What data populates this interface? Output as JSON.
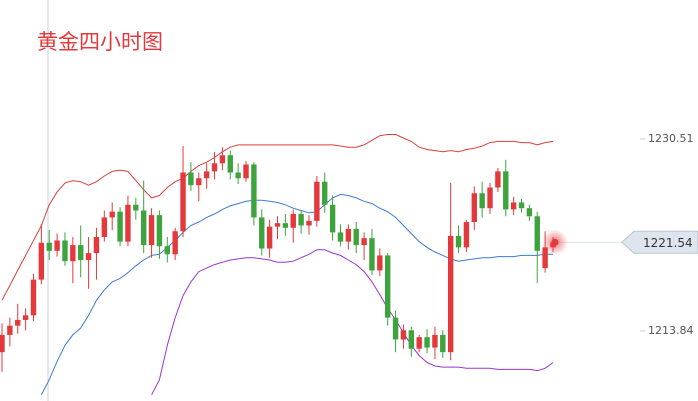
{
  "chart_data": {
    "type": "candlestick",
    "title": "黄金四小时图",
    "up_color": "#e4393c",
    "down_color": "#3da33d",
    "ylim": [
      1207.76,
      1242.58
    ],
    "yticks": [
      1213.84,
      1230.51
    ],
    "last_price": 1221.54,
    "open": [
      1212.0,
      1213.5,
      1214.3,
      1214.8,
      1215.2,
      1218.3,
      1221.5,
      1220.8,
      1221.7,
      1219.9,
      1221.3,
      1220.0,
      1220.6,
      1222.0,
      1223.7,
      1224.2,
      1221.6,
      1224.8,
      1224.3,
      1221.3,
      1223.9,
      1221.2,
      1220.5,
      1222.5,
      1227.6,
      1226.5,
      1227.1,
      1227.7,
      1228.4,
      1229.1,
      1227.6,
      1227.1,
      1228.3,
      1223.7,
      1221.0,
      1222.9,
      1223.2,
      1222.8,
      1224.0,
      1223.0,
      1223.4,
      1226.8,
      1224.8,
      1222.4,
      1221.6,
      1222.7,
      1221.3,
      1221.9,
      1219.1,
      1220.4,
      1215.0,
      1213.1,
      1213.9,
      1212.3,
      1213.3,
      1212.4,
      1213.5,
      1212.0,
      1222.1,
      1221.1,
      1223.3,
      1225.8,
      1224.5,
      1226.3,
      1227.7,
      1224.4,
      1225.0,
      1224.5,
      1223.8,
      1219.3,
      1221.1
    ],
    "high": [
      1214.5,
      1215.0,
      1216.2,
      1215.8,
      1218.8,
      1223.1,
      1222.6,
      1222.3,
      1222.4,
      1222.0,
      1223.0,
      1222.0,
      1222.8,
      1224.3,
      1225.0,
      1224.6,
      1225.6,
      1225.4,
      1226.9,
      1224.5,
      1224.3,
      1222.0,
      1222.8,
      1229.9,
      1228.5,
      1227.6,
      1228.4,
      1229.4,
      1229.8,
      1229.5,
      1228.4,
      1228.6,
      1228.5,
      1224.4,
      1223.5,
      1223.8,
      1224.0,
      1224.4,
      1224.3,
      1223.9,
      1227.3,
      1227.6,
      1225.6,
      1223.1,
      1223.1,
      1223.3,
      1222.4,
      1222.7,
      1221.0,
      1220.6,
      1215.6,
      1214.4,
      1214.2,
      1213.5,
      1214.0,
      1214.2,
      1213.9,
      1226.7,
      1223.0,
      1223.5,
      1226.4,
      1226.8,
      1226.7,
      1228.0,
      1228.7,
      1225.5,
      1225.3,
      1224.8,
      1224.2,
      1222.5,
      1222.0
    ],
    "low": [
      1210.3,
      1212.5,
      1213.6,
      1213.9,
      1214.7,
      1217.9,
      1220.0,
      1220.3,
      1219.5,
      1218.0,
      1218.5,
      1217.5,
      1218.3,
      1221.6,
      1222.6,
      1221.2,
      1221.2,
      1223.5,
      1220.6,
      1220.2,
      1220.1,
      1219.8,
      1220.0,
      1222.0,
      1226.0,
      1225.1,
      1226.2,
      1227.0,
      1227.8,
      1227.0,
      1226.6,
      1226.8,
      1223.0,
      1220.4,
      1220.2,
      1221.8,
      1222.1,
      1221.5,
      1222.3,
      1222.2,
      1222.9,
      1224.1,
      1221.7,
      1221.2,
      1220.9,
      1220.6,
      1220.0,
      1218.7,
      1218.6,
      1214.3,
      1212.0,
      1212.3,
      1211.6,
      1212.0,
      1211.9,
      1211.4,
      1211.5,
      1211.3,
      1220.6,
      1220.7,
      1222.6,
      1223.7,
      1224.0,
      1225.9,
      1223.8,
      1223.9,
      1224.1,
      1223.4,
      1218.0,
      1218.9,
      1220.7
    ],
    "close": [
      1213.5,
      1214.3,
      1214.8,
      1215.2,
      1218.3,
      1221.5,
      1220.8,
      1221.7,
      1219.9,
      1221.3,
      1220.0,
      1220.6,
      1222.0,
      1223.7,
      1224.2,
      1221.6,
      1224.8,
      1224.3,
      1221.3,
      1223.9,
      1221.2,
      1220.5,
      1222.5,
      1227.6,
      1226.5,
      1227.1,
      1227.7,
      1228.4,
      1229.1,
      1227.6,
      1227.1,
      1228.3,
      1223.7,
      1221.0,
      1222.9,
      1223.2,
      1222.8,
      1224.0,
      1223.0,
      1223.4,
      1226.8,
      1224.8,
      1222.4,
      1221.6,
      1222.7,
      1221.3,
      1221.9,
      1219.1,
      1220.4,
      1215.0,
      1213.1,
      1213.9,
      1212.3,
      1213.3,
      1212.4,
      1213.5,
      1212.0,
      1222.1,
      1221.1,
      1223.3,
      1225.8,
      1224.5,
      1226.3,
      1227.7,
      1224.4,
      1225.0,
      1224.5,
      1223.8,
      1220.8,
      1221.1,
      1221.54
    ],
    "lines": [
      {
        "color": "#d9403c",
        "values": [
          1216.5,
          1217.8,
          1219.1,
          1220.4,
          1221.7,
          1223.0,
          1224.8,
          1225.9,
          1226.7,
          1226.9,
          1226.8,
          1226.5,
          1226.8,
          1227.3,
          1227.7,
          1227.8,
          1227.7,
          1226.9,
          1226.1,
          1225.4,
          1225.6,
          1226.3,
          1226.8,
          1227.1,
          1227.7,
          1228.2,
          1228.5,
          1228.9,
          1229.4,
          1229.8,
          1230.0,
          1230.0,
          1230.0,
          1230.0,
          1230.0,
          1230.0,
          1230.0,
          1230.0,
          1230.0,
          1230.0,
          1230.0,
          1230.0,
          1230.0,
          1229.9,
          1229.8,
          1229.8,
          1230.0,
          1230.4,
          1230.8,
          1230.9,
          1230.9,
          1230.6,
          1230.3,
          1229.8,
          1229.6,
          1229.5,
          1229.4,
          1229.5,
          1229.4,
          1229.6,
          1229.7,
          1229.9,
          1230.2,
          1230.3,
          1230.3,
          1230.3,
          1230.2,
          1230.2,
          1230.0,
          1230.2,
          1230.3
        ]
      },
      {
        "color": "#3c7bd6",
        "values": [
          null,
          null,
          null,
          null,
          null,
          1208.3,
          1209.6,
          1211.2,
          1212.6,
          1213.5,
          1214.1,
          1215.2,
          1216.5,
          1217.4,
          1218.1,
          1218.4,
          1218.9,
          1219.5,
          1220.0,
          1220.4,
          1220.5,
          1221.1,
          1221.7,
          1222.4,
          1223.0,
          1223.3,
          1223.7,
          1224.0,
          1224.4,
          1224.7,
          1224.9,
          1225.1,
          1225.2,
          1225.2,
          1225.1,
          1225.0,
          1224.8,
          1224.5,
          1224.3,
          1224.1,
          1224.2,
          1224.8,
          1225.4,
          1225.7,
          1225.6,
          1225.4,
          1225.1,
          1224.9,
          1224.5,
          1224.2,
          1223.7,
          1223.0,
          1222.3,
          1221.6,
          1221.1,
          1220.7,
          1220.4,
          1220.1,
          1219.9,
          1220.0,
          1220.1,
          1220.2,
          1220.2,
          1220.3,
          1220.3,
          1220.3,
          1220.4,
          1220.4,
          1220.4,
          1220.5,
          1220.5
        ]
      },
      {
        "color": "#9a33d6",
        "values": [
          null,
          null,
          null,
          null,
          null,
          null,
          null,
          null,
          null,
          null,
          null,
          null,
          null,
          null,
          null,
          null,
          null,
          null,
          null,
          1208.3,
          1209.6,
          1212.6,
          1215.0,
          1216.9,
          1218.1,
          1219.0,
          1219.3,
          1219.6,
          1219.8,
          1220.0,
          1220.1,
          1220.2,
          1220.2,
          1220.1,
          1220.0,
          1219.8,
          1219.8,
          1219.9,
          1220.2,
          1220.5,
          1220.9,
          1220.9,
          1220.6,
          1220.4,
          1220.0,
          1219.6,
          1219.0,
          1218.1,
          1217.0,
          1215.8,
          1214.8,
          1213.7,
          1212.6,
          1211.7,
          1211.1,
          1210.8,
          1210.7,
          1210.7,
          1210.7,
          1210.6,
          1210.6,
          1210.6,
          1210.6,
          1210.5,
          1210.5,
          1210.5,
          1210.5,
          1210.5,
          1210.4,
          1210.6,
          1211.1
        ]
      }
    ]
  }
}
